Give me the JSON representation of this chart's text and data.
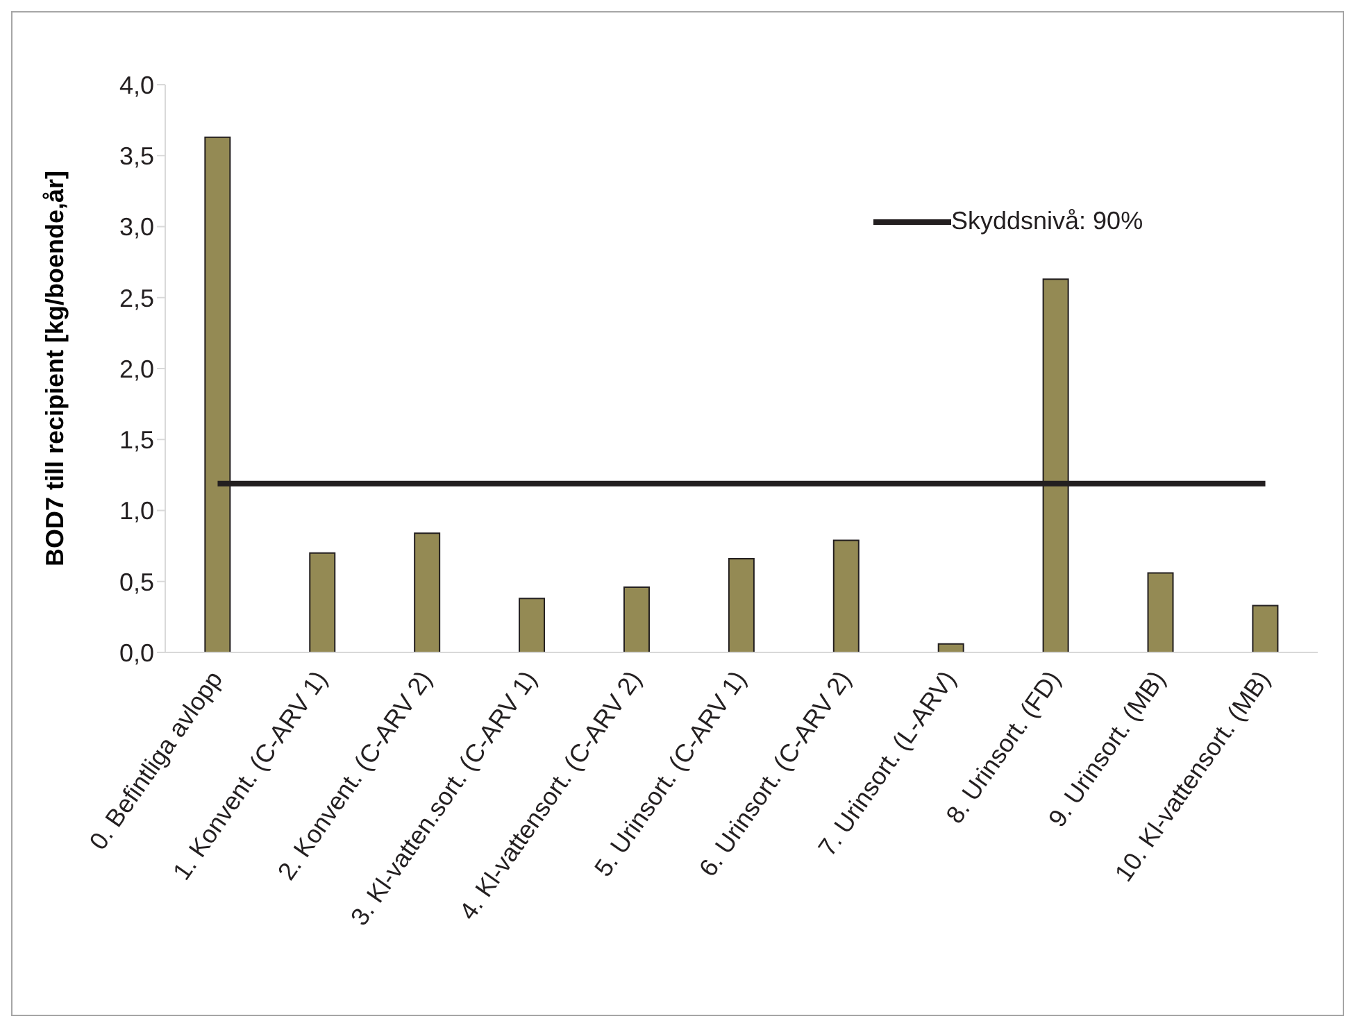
{
  "chart_data": {
    "type": "bar",
    "ylabel": "BOD7 till recipient [kg/boende,år]",
    "categories": [
      "0. Befintliga avlopp",
      "1. Konvent. (C-ARV 1)",
      "2. Konvent. (C-ARV 2)",
      "3. Kl-vatten.sort. (C-ARV 1)",
      "4. Kl-vattensort. (C-ARV 2)",
      "5. Urinsort. (C-ARV 1)",
      "6. Urinsort. (C-ARV 2)",
      "7. Urinsort. (L-ARV)",
      "8. Urinsort. (FD)",
      "9. Urinsort. (MB)",
      "10. Kl-vattensort. (MB)"
    ],
    "series": [
      {
        "color": "#948a54",
        "values": [
          3.63,
          0.7,
          0.84,
          0.38,
          0.46,
          0.66,
          0.79,
          0.06,
          2.63,
          0.56,
          0.33
        ]
      },
      {
        "type": "line",
        "name": "Skyddsnivå: 90%",
        "color": "#231f20",
        "values": [
          1.19,
          1.19,
          1.19,
          1.19,
          1.19,
          1.19,
          1.19,
          1.19,
          1.19,
          1.19,
          1.19
        ]
      }
    ],
    "ylim": [
      0,
      4
    ],
    "yticks": [
      {
        "value": 0,
        "label": "0,0"
      },
      {
        "value": 0.5,
        "label": "0,5"
      },
      {
        "value": 1,
        "label": "1,0"
      },
      {
        "value": 1.5,
        "label": "1,5"
      },
      {
        "value": 2,
        "label": "2,0"
      },
      {
        "value": 2.5,
        "label": "2,5"
      },
      {
        "value": 3,
        "label": "3,0"
      },
      {
        "value": 3.5,
        "label": "3,5"
      },
      {
        "value": 4,
        "label": "4,0"
      }
    ],
    "grid": false,
    "legend": "top right",
    "marker": "none",
    "line_style": "solid"
  }
}
